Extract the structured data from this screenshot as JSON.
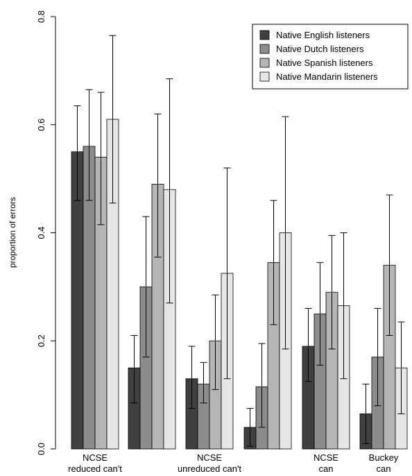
{
  "chart_data": {
    "type": "bar",
    "ylabel": "proportion of errors",
    "ylim": [
      0,
      0.8
    ],
    "yticks": [
      "0.0",
      "0.2",
      "0.4",
      "0.6",
      "0.8"
    ],
    "groups": [
      {
        "label_lines": [
          "NCSE",
          "reduced can't"
        ]
      },
      {
        "label_lines": []
      },
      {
        "label_lines": [
          "NCSE",
          "unreduced can't"
        ]
      },
      {
        "label_lines": []
      },
      {
        "label_lines": [
          "NCSE",
          "can"
        ]
      },
      {
        "label_lines": [
          "Buckey",
          "can"
        ]
      }
    ],
    "series": [
      {
        "name": "Native English listeners",
        "color": "#404040",
        "values": [
          0.55,
          0.15,
          0.13,
          0.04,
          0.19,
          0.065
        ],
        "lower": [
          0.46,
          0.085,
          0.075,
          0.005,
          0.125,
          0.01
        ],
        "upper": [
          0.635,
          0.21,
          0.19,
          0.075,
          0.26,
          0.12
        ]
      },
      {
        "name": "Native Dutch listeners",
        "color": "#8c8c8c",
        "values": [
          0.56,
          0.3,
          0.12,
          0.115,
          0.25,
          0.17
        ],
        "lower": [
          0.46,
          0.17,
          0.085,
          0.04,
          0.155,
          0.08
        ],
        "upper": [
          0.665,
          0.43,
          0.16,
          0.195,
          0.345,
          0.26
        ]
      },
      {
        "name": "Native Spanish listeners",
        "color": "#b5b5b5",
        "values": [
          0.54,
          0.49,
          0.2,
          0.345,
          0.29,
          0.34
        ],
        "lower": [
          0.415,
          0.355,
          0.11,
          0.23,
          0.185,
          0.21
        ],
        "upper": [
          0.66,
          0.62,
          0.285,
          0.46,
          0.395,
          0.47
        ]
      },
      {
        "name": "Native Mandarin listeners",
        "color": "#e6e6e6",
        "values": [
          0.61,
          0.48,
          0.325,
          0.4,
          0.265,
          0.15
        ],
        "lower": [
          0.455,
          0.27,
          0.13,
          0.185,
          0.13,
          0.065
        ],
        "upper": [
          0.765,
          0.685,
          0.52,
          0.615,
          0.4,
          0.235
        ]
      }
    ],
    "legend_position": "top-right",
    "grid": false
  }
}
